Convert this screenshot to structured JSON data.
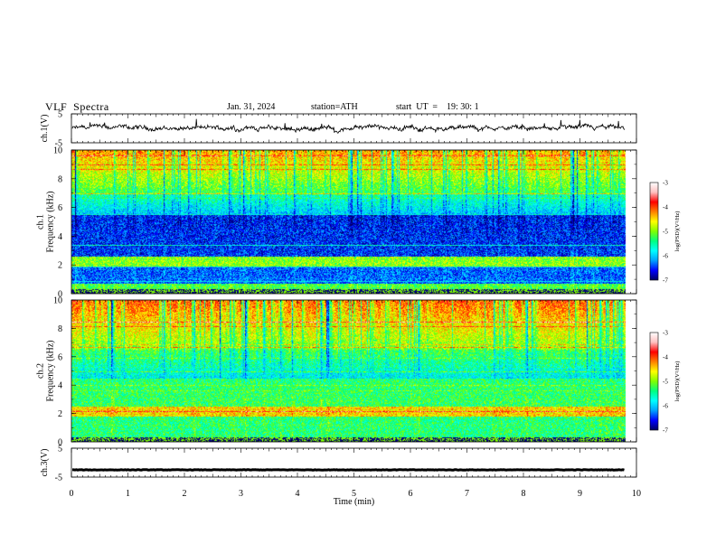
{
  "header": {
    "title": "VLF  Spectra",
    "date": "Jan. 31, 2024",
    "station": "station=ATH",
    "start": "start  UT  =    19: 30: 1"
  },
  "chart_data": [
    {
      "type": "line",
      "panel": "waveform-ch1",
      "ylabel": "ch.1(V)",
      "ylim": [
        -5,
        5
      ],
      "yticks": [
        "5",
        "-5"
      ],
      "xlim": [
        0,
        10
      ],
      "signal_end_min": 9.8,
      "baseline_v": 0,
      "amplitude_v": 1.0,
      "color": "#000000"
    },
    {
      "type": "heatmap",
      "panel": "spectrogram-ch1",
      "ylabel_lines": [
        "ch.1",
        "Frequency (kHz)"
      ],
      "ylim": [
        0,
        10
      ],
      "yticks": [
        "0",
        "2",
        "4",
        "6",
        "8",
        "10"
      ],
      "xlim": [
        0,
        10
      ],
      "data_end_min": 9.8,
      "colorbar": {
        "label": "log(PSD)(V²/Hz)",
        "range": [
          -7,
          -3
        ],
        "ticks": [
          "-3",
          "-4",
          "-5",
          "-6",
          "-7"
        ]
      }
    },
    {
      "type": "heatmap",
      "panel": "spectrogram-ch2",
      "ylabel_lines": [
        "ch.2",
        "Frequency (kHz)"
      ],
      "ylim": [
        0,
        10
      ],
      "yticks": [
        "0",
        "2",
        "4",
        "6",
        "8",
        "10"
      ],
      "xlim": [
        0,
        10
      ],
      "data_end_min": 9.8,
      "colorbar": {
        "label": "log(PSD)(V²/Hz)",
        "range": [
          -7,
          -3
        ],
        "ticks": [
          "-3",
          "-4",
          "-5",
          "-6",
          "-7"
        ]
      }
    },
    {
      "type": "line",
      "panel": "waveform-ch3",
      "ylabel": "ch.3(V)",
      "ylim": [
        -5,
        5
      ],
      "yticks": [
        "5",
        "-5"
      ],
      "xlim": [
        0,
        10
      ],
      "signal_end_min": 9.8,
      "baseline_v": -2.5,
      "amplitude_v": 0.15,
      "color": "#000000"
    }
  ],
  "xaxis": {
    "label": "Time  (min)",
    "range": [
      0,
      10
    ],
    "ticks": [
      "0",
      "1",
      "2",
      "3",
      "4",
      "5",
      "6",
      "7",
      "8",
      "9",
      "10"
    ]
  },
  "colormap": [
    "#000060",
    "#0000ff",
    "#00a0ff",
    "#00ffff",
    "#00ff80",
    "#80ff00",
    "#ffff00",
    "#ff8000",
    "#ff0000",
    "#ffc0c0",
    "#ffffff"
  ]
}
